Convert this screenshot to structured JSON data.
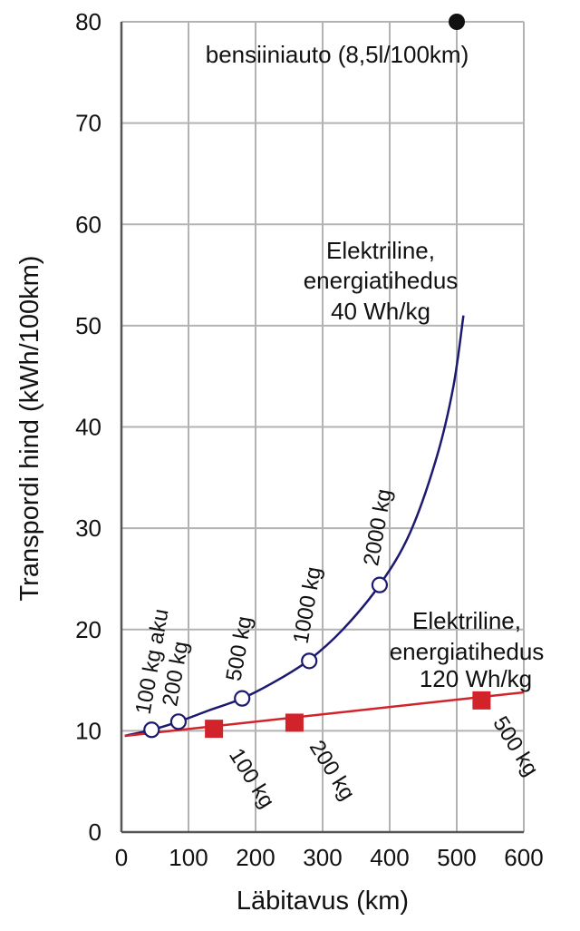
{
  "chart_data": {
    "type": "line",
    "title": "",
    "xlabel": "Läbitavus (km)",
    "ylabel": "Transpordi hind (kWh/100km)",
    "xlim": [
      0,
      600
    ],
    "ylim": [
      0,
      80
    ],
    "x_ticks": [
      0,
      100,
      200,
      300,
      400,
      500,
      600
    ],
    "y_ticks": [
      0,
      10,
      20,
      30,
      40,
      50,
      60,
      70,
      80
    ],
    "grid": true,
    "reference_point": {
      "name": "bensiiniauto (8,5l/100km)",
      "x": 500,
      "y": 80
    },
    "series": [
      {
        "name": "Elektriline, energiatihedus 40 Wh/kg",
        "label_lines": [
          "Elektriline,",
          "energiatihedus",
          "40 Wh/kg"
        ],
        "color": "#1c1a6e",
        "marker": "open-circle",
        "curve": {
          "x": [
            5,
            45,
            85,
            130,
            180,
            230,
            280,
            330,
            385,
            430,
            470,
            495,
            510
          ],
          "y": [
            9.5,
            10.1,
            10.9,
            12.0,
            13.2,
            14.9,
            17.0,
            20.0,
            24.4,
            29.5,
            37.0,
            44.0,
            51.0
          ]
        },
        "points": [
          {
            "x": 45,
            "y": 10.1,
            "label": "100 kg aku"
          },
          {
            "x": 85,
            "y": 10.9,
            "label": "200 kg"
          },
          {
            "x": 180,
            "y": 13.2,
            "label": "500 kg"
          },
          {
            "x": 280,
            "y": 16.9,
            "label": "1000 kg"
          },
          {
            "x": 385,
            "y": 24.4,
            "label": "2000 kg"
          }
        ]
      },
      {
        "name": "Elektriline, energiatihedus 120 Wh/kg",
        "label_lines": [
          "Elektriline,",
          "energiatihedus",
          "120 Wh/kg"
        ],
        "color": "#d2232a",
        "marker": "square",
        "curve": {
          "x": [
            5,
            600
          ],
          "y": [
            9.5,
            13.8
          ]
        },
        "points": [
          {
            "x": 138,
            "y": 10.2,
            "label": "100 kg"
          },
          {
            "x": 258,
            "y": 10.8,
            "label": "200 kg"
          },
          {
            "x": 537,
            "y": 13.0,
            "label": "500 kg"
          }
        ]
      }
    ]
  }
}
